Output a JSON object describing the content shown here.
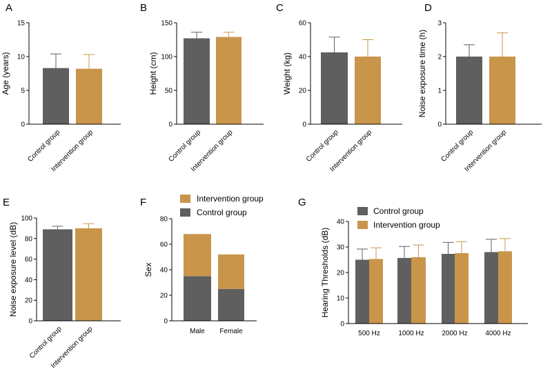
{
  "colors": {
    "control": "#5f5f5f",
    "intervention": "#c9954b",
    "axis": "#000000"
  },
  "chart_data": [
    {
      "id": "A",
      "letter": "A",
      "type": "bar",
      "ylabel": "Age (years)",
      "ylim": [
        0,
        15
      ],
      "yticks": [
        0,
        5,
        10,
        15
      ],
      "categories": [
        "Control group",
        "Intervention group"
      ],
      "values": [
        8.3,
        8.2
      ],
      "errors": [
        2.1,
        2.1
      ]
    },
    {
      "id": "B",
      "letter": "B",
      "type": "bar",
      "ylabel": "Height (cm)",
      "ylim": [
        0,
        150
      ],
      "yticks": [
        0,
        50,
        100,
        150
      ],
      "categories": [
        "Control group",
        "Intervention group"
      ],
      "values": [
        127,
        129
      ],
      "errors": [
        9,
        7
      ]
    },
    {
      "id": "C",
      "letter": "C",
      "type": "bar",
      "ylabel": "Weight (kg)",
      "ylim": [
        0,
        60
      ],
      "yticks": [
        0,
        20,
        40,
        60
      ],
      "categories": [
        "Control group",
        "Intervention group"
      ],
      "values": [
        42.5,
        40
      ],
      "errors": [
        9,
        10
      ]
    },
    {
      "id": "D",
      "letter": "D",
      "type": "bar",
      "ylabel": "Noise exposure time (h)",
      "ylim": [
        0,
        3
      ],
      "yticks": [
        0,
        1,
        2,
        3
      ],
      "categories": [
        "Control group",
        "Intervention group"
      ],
      "values": [
        2.0,
        2.0
      ],
      "errors": [
        0.35,
        0.7
      ]
    },
    {
      "id": "E",
      "letter": "E",
      "type": "bar",
      "ylabel": "Noise exposure level (dB)",
      "ylim": [
        0,
        100
      ],
      "yticks": [
        0,
        20,
        40,
        60,
        80,
        100
      ],
      "categories": [
        "Control group",
        "Intervention group"
      ],
      "values": [
        89,
        90
      ],
      "errors": [
        3,
        4.5
      ]
    },
    {
      "id": "F",
      "letter": "F",
      "type": "stacked-bar",
      "ylabel": "Sex",
      "ylim": [
        0,
        80
      ],
      "yticks": [
        0,
        20,
        40,
        60,
        80
      ],
      "categories": [
        "Male",
        "Female"
      ],
      "series": [
        {
          "name": "Control group",
          "values": [
            35,
            25
          ]
        },
        {
          "name": "Intervention group",
          "values": [
            33,
            27
          ]
        }
      ],
      "legend": [
        "Intervention group",
        "Control group"
      ]
    },
    {
      "id": "G",
      "letter": "G",
      "type": "grouped-bar",
      "ylabel": "Hearing Thresholds (dB)",
      "ylim": [
        0,
        40
      ],
      "yticks": [
        0,
        10,
        20,
        30,
        40
      ],
      "categories": [
        "500 Hz",
        "1000 Hz",
        "2000 Hz",
        "4000 Hz"
      ],
      "series": [
        {
          "name": "Control group",
          "values": [
            25.0,
            25.7,
            27.3,
            28.0
          ],
          "errors": [
            4.2,
            4.5,
            4.5,
            5.0
          ]
        },
        {
          "name": "Intervention group",
          "values": [
            25.3,
            26.0,
            27.6,
            28.3
          ],
          "errors": [
            4.4,
            4.8,
            4.5,
            5.0
          ]
        }
      ],
      "legend": [
        "Control group",
        "Intervention group"
      ]
    }
  ]
}
